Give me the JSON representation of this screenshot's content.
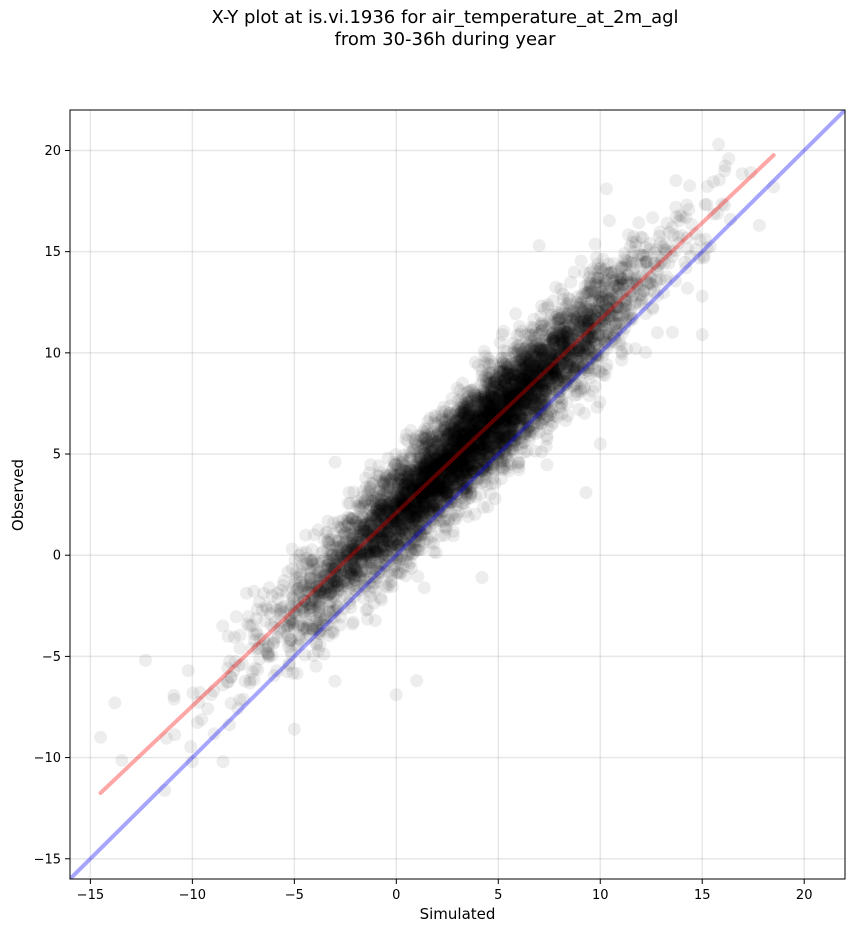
{
  "chart_data": {
    "type": "scatter",
    "title_lines": [
      "X-Y plot at is.vi.1936 for air_temperature_at_2m_agl",
      "from 30-36h during year"
    ],
    "xlabel": "Simulated",
    "ylabel": "Observed",
    "xlim": [
      -16,
      22
    ],
    "ylim": [
      -16,
      22
    ],
    "xticks": [
      -15,
      -10,
      -5,
      0,
      5,
      10,
      15,
      20
    ],
    "yticks": [
      -15,
      -10,
      -5,
      0,
      5,
      10,
      15,
      20
    ],
    "xtick_labels": [
      "−15",
      "−10",
      "−5",
      "0",
      "5",
      "10",
      "15",
      "20"
    ],
    "ytick_labels": [
      "−15",
      "−10",
      "−5",
      "0",
      "5",
      "10",
      "15",
      "20"
    ],
    "grid": true,
    "point_color": "#000000",
    "point_alpha": 0.07,
    "point_count": 6000,
    "scatter_model": {
      "slope": 0.955,
      "intercept": 2.1,
      "noise_sd": 1.3,
      "x_range": [
        -14.5,
        18.5
      ]
    },
    "representative_points": [
      [
        -14.5,
        -9.0
      ],
      [
        -13.8,
        -7.3
      ],
      [
        -12.3,
        -5.2
      ],
      [
        -10.2,
        -5.7
      ],
      [
        -8.5,
        -10.2
      ],
      [
        -5.0,
        -8.6
      ],
      [
        -3.0,
        4.6
      ],
      [
        -1.5,
        3.8
      ],
      [
        0.0,
        -6.9
      ],
      [
        1.0,
        -6.2
      ],
      [
        4.2,
        -1.1
      ],
      [
        5.1,
        10.5
      ],
      [
        7.0,
        15.3
      ],
      [
        9.3,
        3.1
      ],
      [
        10.0,
        5.5
      ],
      [
        10.3,
        18.1
      ],
      [
        11.3,
        10.2
      ],
      [
        12.8,
        11.0
      ],
      [
        15.0,
        12.8
      ],
      [
        15.0,
        10.9
      ],
      [
        15.8,
        20.3
      ],
      [
        16.3,
        19.6
      ],
      [
        17.8,
        16.3
      ],
      [
        18.5,
        18.2
      ]
    ],
    "series": [
      {
        "type": "line",
        "color": "#ff0000",
        "opacity": 0.35,
        "slope": 0.955,
        "intercept": 2.1,
        "x_range": [
          -14.5,
          18.5
        ]
      },
      {
        "type": "line",
        "color": "#0000ff",
        "opacity": 0.35,
        "slope": 1.0,
        "intercept": 0.0,
        "x_range": [
          -16,
          22
        ]
      }
    ]
  }
}
